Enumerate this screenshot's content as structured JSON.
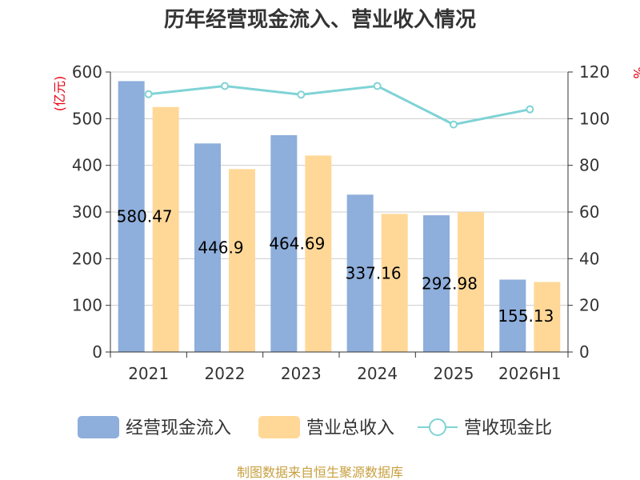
{
  "chart_data": {
    "type": "bar",
    "title": "历年经营现金流入、营业收入情况",
    "categories": [
      "2021",
      "2022",
      "2023",
      "2024",
      "2025",
      "2026H1"
    ],
    "y_left": {
      "unit_label": "(亿元)",
      "ylim": [
        0,
        600
      ],
      "ticks": [
        "0",
        "100",
        "200",
        "300",
        "400",
        "500",
        "600"
      ]
    },
    "y_right": {
      "unit_label": "%",
      "ylim": [
        0,
        120
      ],
      "ticks": [
        "0",
        "20",
        "40",
        "60",
        "80",
        "100",
        "120"
      ]
    },
    "series": [
      {
        "name": "经营现金流入",
        "kind": "bar",
        "axis": "left",
        "color": "#8eaedb",
        "values": [
          580.47,
          446.9,
          464.69,
          337.16,
          292.98,
          155.13
        ],
        "data_labels": [
          "580.47",
          "446.9",
          "464.69",
          "337.16",
          "292.98",
          "155.13"
        ]
      },
      {
        "name": "营业总收入",
        "kind": "bar",
        "axis": "left",
        "color": "#ffd898",
        "values": [
          525,
          392,
          421,
          296,
          300,
          150
        ]
      },
      {
        "name": "营收现金比",
        "kind": "line",
        "axis": "right",
        "color": "#7fd3d5",
        "values": [
          110.5,
          114,
          110.3,
          114,
          97.5,
          104
        ]
      }
    ],
    "grid": true,
    "legend_position": "bottom"
  },
  "source_text": "制图数据来自恒生聚源数据库"
}
